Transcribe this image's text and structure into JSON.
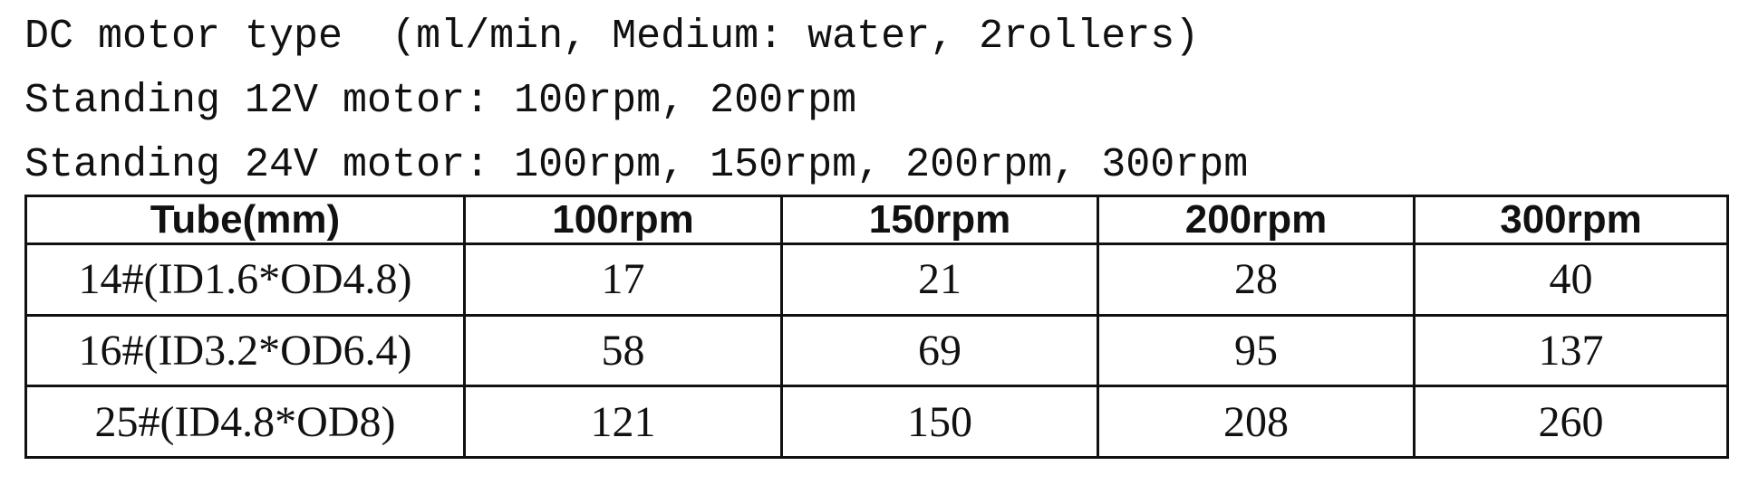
{
  "lines": [
    "DC motor type  (ml/min, Medium: water, 2rollers)",
    "Standing 12V motor: 100rpm, 200rpm",
    "Standing 24V motor: 100rpm, 150rpm, 200rpm, 300rpm"
  ],
  "table": {
    "header": [
      "Tube(mm)",
      "100rpm",
      "150rpm",
      "200rpm",
      "300rpm"
    ],
    "rows": [
      [
        "14#(ID1.6*OD4.8)",
        17,
        21,
        28,
        40
      ],
      [
        "16#(ID3.2*OD6.4)",
        58,
        69,
        95,
        137
      ],
      [
        "25#(ID4.8*OD8)",
        121,
        150,
        208,
        260
      ]
    ]
  }
}
